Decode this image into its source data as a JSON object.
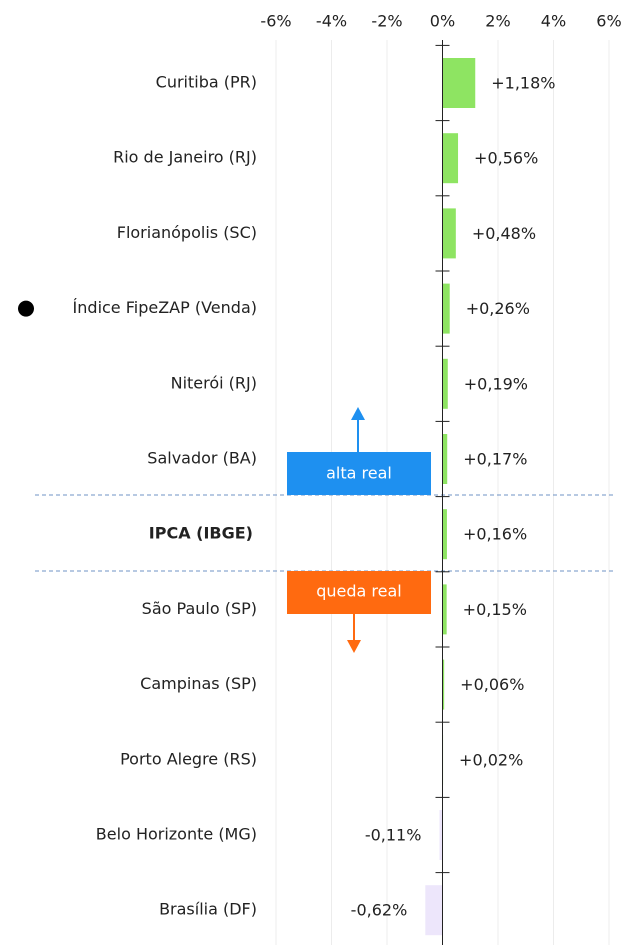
{
  "chart_data": {
    "type": "hbar",
    "categories": [
      "Curitiba (PR)",
      "Rio de Janeiro (RJ)",
      "Florianópolis (SC)",
      "Índice FipeZAP (Venda)",
      "Niterói (RJ)",
      "Salvador (BA)",
      "IPCA (IBGE)",
      "São Paulo (SP)",
      "Campinas (SP)",
      "Porto Alegre (RS)",
      "Belo Horizonte (MG)",
      "Brasília (DF)"
    ],
    "values": [
      1.18,
      0.56,
      0.48,
      0.26,
      0.19,
      0.17,
      0.16,
      0.15,
      0.06,
      0.02,
      -0.11,
      -0.62
    ],
    "value_labels": [
      "+1,18%",
      "+0,56%",
      "+0,48%",
      "+0,26%",
      "+0,19%",
      "+0,17%",
      "+0,16%",
      "+0,15%",
      "+0,06%",
      "+0,02%",
      "-0,11%",
      "-0,62%"
    ],
    "colors": [
      "#8ee462",
      "#8ee462",
      "#8ee462",
      "#8ee462",
      "#8ee462",
      "#8ee462",
      "#8ee462",
      "#8ee462",
      "#8ee462",
      "#8ee462",
      "#ede6fb",
      "#ede6fb"
    ],
    "xlim": [
      -6,
      6
    ],
    "xticks": [
      {
        "value": -6,
        "label": "-6%"
      },
      {
        "value": -4,
        "label": "-4%"
      },
      {
        "value": -2,
        "label": "-2%"
      },
      {
        "value": 0,
        "label": "0%"
      },
      {
        "value": 2,
        "label": "2%"
      },
      {
        "value": 4,
        "label": "4%"
      },
      {
        "value": 6,
        "label": "6%"
      }
    ],
    "grid": true,
    "annotations": {
      "up": "alta real",
      "down": "queda real"
    }
  }
}
